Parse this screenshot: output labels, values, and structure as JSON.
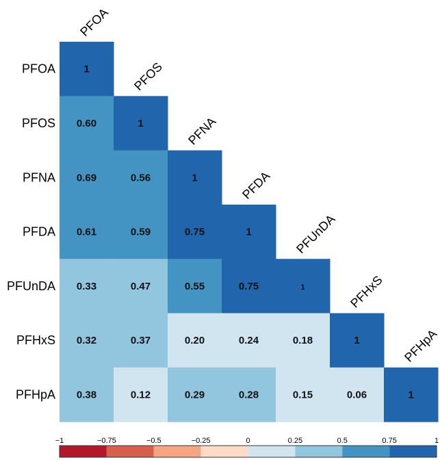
{
  "chart_data": {
    "type": "heatmap",
    "variables": [
      "PFOA",
      "PFOS",
      "PFNA",
      "PFDA",
      "PFUnDA",
      "PFHxS",
      "PFHpA"
    ],
    "matrix": [
      [
        "1"
      ],
      [
        "0.60",
        "1"
      ],
      [
        "0.69",
        "0.56",
        "1"
      ],
      [
        "0.61",
        "0.59",
        "0.75",
        "1"
      ],
      [
        "0.33",
        "0.47",
        "0.55",
        "0.75",
        "1"
      ],
      [
        "0.32",
        "0.37",
        "0.20",
        "0.24",
        "0.18",
        "1"
      ],
      [
        "0.38",
        "0.12",
        "0.29",
        "0.28",
        "0.15",
        "0.06",
        "1"
      ]
    ],
    "colorbar": {
      "range": [
        -1,
        1
      ],
      "ticks": [
        "−1",
        "−0.75",
        "−0.5",
        "−0.25",
        "0",
        "0.25",
        "0.5",
        "0.75",
        "1"
      ],
      "bins": [
        {
          "from": -1.0,
          "to": -0.75,
          "color": "#b2182b"
        },
        {
          "from": -0.75,
          "to": -0.5,
          "color": "#d6604d"
        },
        {
          "from": -0.5,
          "to": -0.25,
          "color": "#f4a582"
        },
        {
          "from": -0.25,
          "to": 0.0,
          "color": "#fddbc7"
        },
        {
          "from": 0.0,
          "to": 0.25,
          "color": "#d1e5f0"
        },
        {
          "from": 0.25,
          "to": 0.5,
          "color": "#92c5de"
        },
        {
          "from": 0.5,
          "to": 0.75,
          "color": "#4393c3"
        },
        {
          "from": 0.75,
          "to": 1.0,
          "color": "#2166ac"
        }
      ]
    },
    "grid": false,
    "legend_position": "bottom"
  }
}
